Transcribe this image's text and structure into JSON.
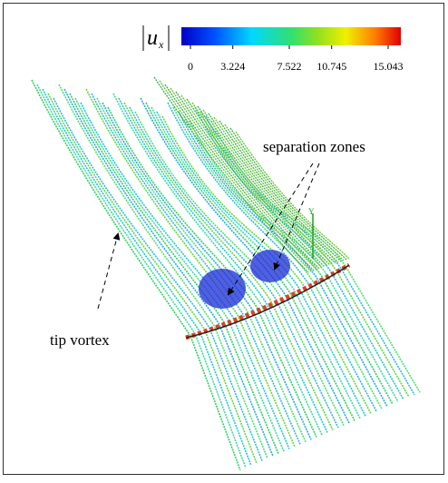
{
  "colorbar": {
    "symbol": "u",
    "subscript": "x",
    "range": [
      0,
      15.043
    ],
    "ticks": [
      0,
      3.224,
      7.522,
      10.745,
      15.043
    ]
  },
  "annotations": {
    "separation": "separation zones",
    "tip": "tip vortex"
  }
}
